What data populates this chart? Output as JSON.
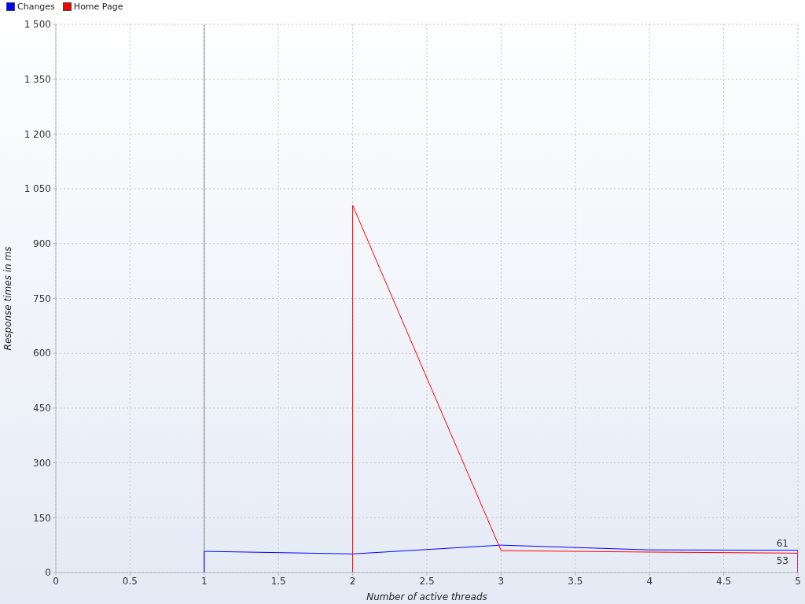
{
  "chart_data": {
    "type": "line",
    "xlabel": "Number of active threads",
    "ylabel": "Response times in ms",
    "xlim": [
      0,
      5
    ],
    "xticks": [
      0,
      0.5,
      1,
      1.5,
      2,
      2.5,
      3,
      3.5,
      4,
      4.5,
      5
    ],
    "ylim": [
      0,
      1500
    ],
    "yticks": [
      0,
      150,
      300,
      450,
      600,
      750,
      900,
      {
        "value": 1050,
        "label": "1 050"
      },
      {
        "value": 1200,
        "label": "1 200"
      },
      {
        "value": 1350,
        "label": "1 350"
      },
      {
        "value": 1500,
        "label": "1 500"
      }
    ],
    "grid": true,
    "legend": "top left",
    "ref_lines": [
      {
        "axis": "x",
        "value": 1,
        "color": "#808080"
      }
    ],
    "series": [
      {
        "name": "Changes",
        "color": "#0000ff",
        "x": [
          1,
          1,
          2,
          3,
          4,
          5,
          5
        ],
        "values": [
          0,
          58,
          51,
          75,
          62,
          61,
          0
        ],
        "value_labels": [
          null,
          null,
          null,
          null,
          null,
          "61",
          null
        ]
      },
      {
        "name": "Home Page",
        "color": "#ff0000",
        "x": [
          2,
          2,
          3,
          4,
          5,
          5
        ],
        "values": [
          0,
          1005,
          60,
          56,
          53,
          0
        ],
        "value_labels": [
          null,
          null,
          null,
          null,
          "53",
          null
        ]
      }
    ]
  }
}
